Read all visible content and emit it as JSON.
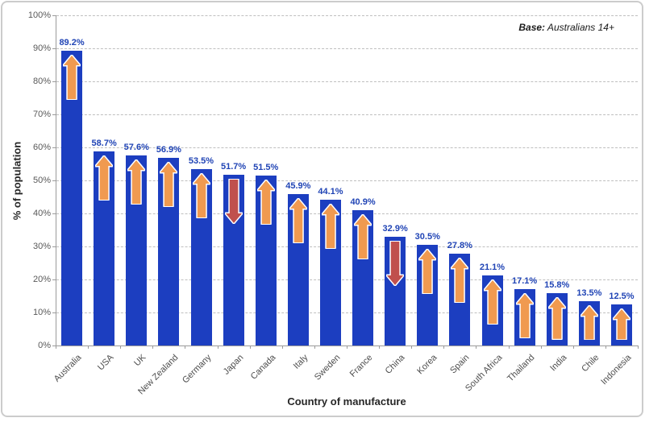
{
  "base_note": {
    "bold": "Base:",
    "rest": " Australians 14+"
  },
  "chart_data": {
    "type": "bar",
    "title": "",
    "xlabel": "Country of manufacture",
    "ylabel": "% of population",
    "ylim": [
      0,
      100
    ],
    "ytick_interval": 10,
    "ytick_labels": [
      "0%",
      "10%",
      "20%",
      "30%",
      "40%",
      "50%",
      "60%",
      "70%",
      "80%",
      "90%",
      "100%"
    ],
    "grid": "horizontal-dashed",
    "legend_position": "none",
    "categories": [
      "Australia",
      "USA",
      "UK",
      "New Zealand",
      "Germany",
      "Japan",
      "Canada",
      "Italy",
      "Sweden",
      "France",
      "China",
      "Korea",
      "Spain",
      "South Africa",
      "Thailand",
      "India",
      "Chile",
      "Indonesia"
    ],
    "series": [
      {
        "name": "% of population",
        "values": [
          89.2,
          58.7,
          57.6,
          56.9,
          53.5,
          51.7,
          51.5,
          45.9,
          44.1,
          40.9,
          32.9,
          30.5,
          27.8,
          21.1,
          17.1,
          15.8,
          13.5,
          12.5
        ]
      }
    ],
    "value_labels": [
      "89.2%",
      "58.7%",
      "57.6%",
      "56.9%",
      "53.5%",
      "51.7%",
      "51.5%",
      "45.9%",
      "44.1%",
      "40.9%",
      "32.9%",
      "30.5%",
      "27.8%",
      "21.1%",
      "17.1%",
      "15.8%",
      "13.5%",
      "12.5%"
    ],
    "trend_arrows": [
      "up",
      "up",
      "up",
      "up",
      "up",
      "down",
      "up",
      "up",
      "up",
      "up",
      "down",
      "up",
      "up",
      "up",
      "up",
      "up",
      "up",
      "up"
    ],
    "colors": {
      "bar": "#1c3ec0",
      "up_arrow": "#f09a50",
      "down_arrow": "#c0504d",
      "arrow_outline": "#ffffff",
      "value_label": "#2044b5",
      "gridline": "#bfbfbf",
      "axis_line": "#9b9b9b",
      "tick_text": "#595959",
      "axis_title_text": "#262626"
    }
  }
}
